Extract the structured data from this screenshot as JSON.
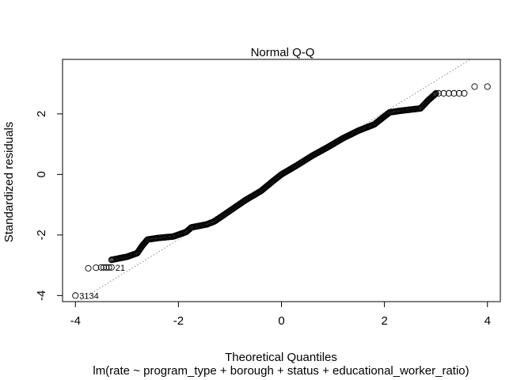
{
  "chart_data": {
    "type": "scatter",
    "title": "Normal Q-Q",
    "xlabel": "Theoretical Quantiles",
    "subtitle": "lm(rate ~ program_type + borough + status + educational_worker_ratio)",
    "ylabel": "Standardized residuals",
    "xlim": [
      -4.25,
      4.25
    ],
    "ylim": [
      -4.2,
      3.8
    ],
    "x_ticks": [
      -4,
      -2,
      0,
      2,
      4
    ],
    "x_tick_labels": [
      "-4",
      "-2",
      "0",
      "2",
      "4"
    ],
    "y_ticks": [
      -4,
      -2,
      0,
      2
    ],
    "y_tick_labels": [
      "-4",
      "-2",
      "0",
      "2"
    ],
    "grid": false,
    "reference_line": {
      "slope": 1.05,
      "intercept": -0.05,
      "style": "dotted",
      "color": "#888888"
    },
    "marker": "open-circle",
    "marker_color": "#000000",
    "curve_points": [
      [
        -3.3,
        -2.82
      ],
      [
        -3.0,
        -2.72
      ],
      [
        -2.8,
        -2.6
      ],
      [
        -2.7,
        -2.35
      ],
      [
        -2.6,
        -2.15
      ],
      [
        -2.4,
        -2.1
      ],
      [
        -2.1,
        -2.05
      ],
      [
        -1.85,
        -1.9
      ],
      [
        -1.75,
        -1.75
      ],
      [
        -1.45,
        -1.65
      ],
      [
        -1.3,
        -1.55
      ],
      [
        -1.0,
        -1.2
      ],
      [
        -0.7,
        -0.85
      ],
      [
        -0.4,
        -0.55
      ],
      [
        -0.15,
        -0.2
      ],
      [
        0.0,
        0.0
      ],
      [
        0.3,
        0.3
      ],
      [
        0.6,
        0.62
      ],
      [
        0.9,
        0.9
      ],
      [
        1.2,
        1.2
      ],
      [
        1.5,
        1.45
      ],
      [
        1.8,
        1.65
      ],
      [
        1.95,
        1.85
      ],
      [
        2.1,
        2.05
      ],
      [
        2.3,
        2.1
      ],
      [
        2.7,
        2.18
      ],
      [
        2.85,
        2.45
      ],
      [
        2.95,
        2.6
      ],
      [
        3.0,
        2.68
      ]
    ],
    "sparse_points": [
      {
        "x": -4.0,
        "y": -4.0,
        "label": "3134"
      },
      {
        "x": -3.75,
        "y": -3.1
      },
      {
        "x": -3.6,
        "y": -3.08
      },
      {
        "x": -3.5,
        "y": -3.07
      },
      {
        "x": -3.45,
        "y": -3.07
      },
      {
        "x": -3.4,
        "y": -3.07
      },
      {
        "x": -3.35,
        "y": -3.07
      },
      {
        "x": -3.3,
        "y": -3.07,
        "label": "21"
      },
      {
        "x": 3.05,
        "y": 2.68
      },
      {
        "x": 3.15,
        "y": 2.68
      },
      {
        "x": 3.25,
        "y": 2.68
      },
      {
        "x": 3.35,
        "y": 2.68
      },
      {
        "x": 3.45,
        "y": 2.68
      },
      {
        "x": 3.55,
        "y": 2.68
      },
      {
        "x": 3.75,
        "y": 2.9
      },
      {
        "x": 4.0,
        "y": 2.9
      }
    ]
  }
}
